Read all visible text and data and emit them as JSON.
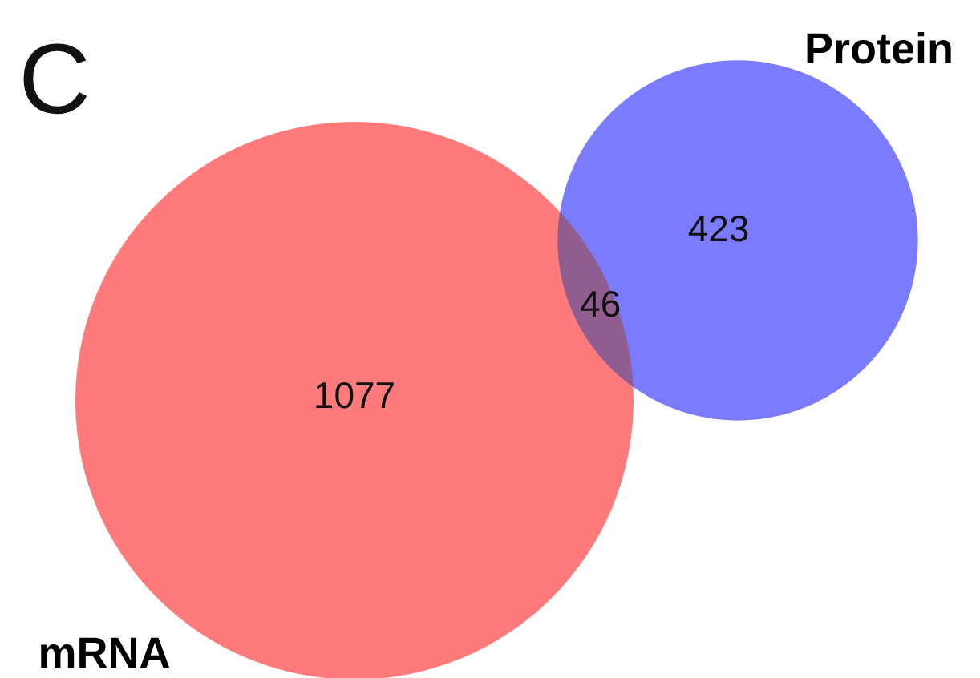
{
  "chart_data": {
    "type": "other",
    "categories": [
      "mRNA",
      "Protein"
    ],
    "values": [
      1077,
      423
    ],
    "colors": [
      "#ff7b7b",
      "#7b7bff"
    ],
    "data_labels": true,
    "annotations": [
      "C",
      {
        "text": "46"
      }
    ]
  }
}
